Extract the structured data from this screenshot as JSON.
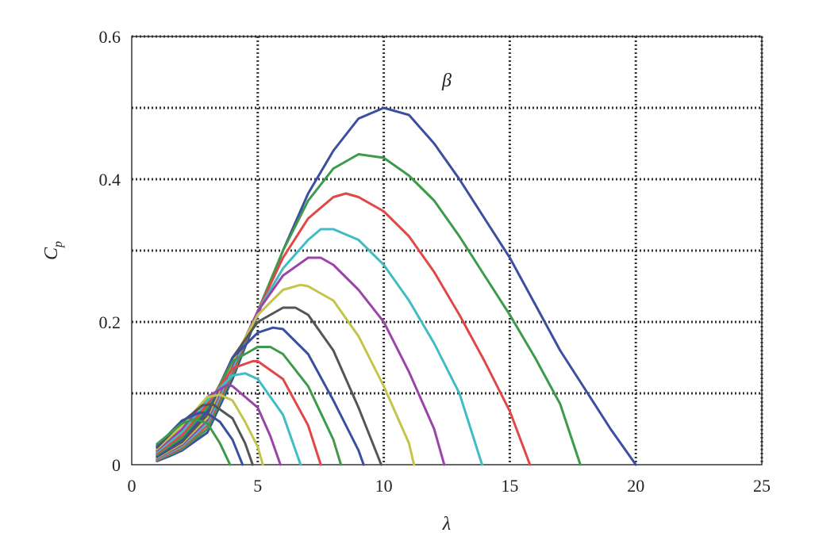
{
  "chart_data": {
    "type": "line",
    "title": "",
    "xlabel": "λ",
    "ylabel": "C",
    "ylabel_sub": "p",
    "xlim": [
      0,
      25
    ],
    "ylim": [
      0,
      0.6
    ],
    "x_ticks": [
      0,
      5,
      10,
      15,
      20,
      25
    ],
    "x_tick_labels": [
      "0",
      "5",
      "10",
      "15",
      "20",
      "25"
    ],
    "y_ticks": [
      0,
      0.2,
      0.4,
      0.6
    ],
    "y_tick_labels": [
      "0",
      "0.2",
      "0.4",
      "0.6"
    ],
    "grid": true,
    "grid_x": [
      5,
      10,
      15,
      20,
      25
    ],
    "grid_y": [
      0.1,
      0.2,
      0.3,
      0.4,
      0.5,
      0.6
    ],
    "annotation": {
      "text": "β",
      "x": 12.5,
      "y": 0.53
    },
    "series": [
      {
        "color": "#3a4fa0",
        "values": [
          [
            1,
            0.005
          ],
          [
            1.5,
            0.012
          ],
          [
            2,
            0.02
          ],
          [
            3,
            0.045
          ],
          [
            4,
            0.12
          ],
          [
            5,
            0.21
          ],
          [
            6,
            0.3
          ],
          [
            7,
            0.38
          ],
          [
            8,
            0.44
          ],
          [
            9,
            0.485
          ],
          [
            10,
            0.5
          ],
          [
            11,
            0.49
          ],
          [
            12,
            0.45
          ],
          [
            13,
            0.4
          ],
          [
            14,
            0.345
          ],
          [
            15,
            0.29
          ],
          [
            16,
            0.225
          ],
          [
            17,
            0.16
          ],
          [
            18,
            0.105
          ],
          [
            19,
            0.05
          ],
          [
            20,
            0
          ]
        ]
      },
      {
        "color": "#3c9a4a",
        "values": [
          [
            1,
            0.006
          ],
          [
            2,
            0.022
          ],
          [
            3,
            0.05
          ],
          [
            4,
            0.125
          ],
          [
            5,
            0.215
          ],
          [
            6,
            0.3
          ],
          [
            7,
            0.37
          ],
          [
            8,
            0.415
          ],
          [
            9,
            0.435
          ],
          [
            10,
            0.43
          ],
          [
            11,
            0.405
          ],
          [
            12,
            0.37
          ],
          [
            13,
            0.32
          ],
          [
            14,
            0.265
          ],
          [
            15,
            0.21
          ],
          [
            16,
            0.15
          ],
          [
            17,
            0.085
          ],
          [
            17.8,
            0
          ]
        ]
      },
      {
        "color": "#e04848",
        "values": [
          [
            1,
            0.007
          ],
          [
            2,
            0.024
          ],
          [
            3,
            0.055
          ],
          [
            4,
            0.13
          ],
          [
            5,
            0.215
          ],
          [
            6,
            0.29
          ],
          [
            7,
            0.345
          ],
          [
            8,
            0.375
          ],
          [
            8.5,
            0.38
          ],
          [
            9,
            0.375
          ],
          [
            10,
            0.355
          ],
          [
            11,
            0.32
          ],
          [
            12,
            0.27
          ],
          [
            13,
            0.21
          ],
          [
            14,
            0.145
          ],
          [
            15,
            0.075
          ],
          [
            15.8,
            0
          ]
        ]
      },
      {
        "color": "#40bcc4",
        "values": [
          [
            1,
            0.008
          ],
          [
            2,
            0.026
          ],
          [
            3,
            0.058
          ],
          [
            4,
            0.135
          ],
          [
            5,
            0.215
          ],
          [
            6,
            0.275
          ],
          [
            7,
            0.315
          ],
          [
            7.5,
            0.33
          ],
          [
            8,
            0.33
          ],
          [
            9,
            0.315
          ],
          [
            10,
            0.28
          ],
          [
            11,
            0.23
          ],
          [
            12,
            0.17
          ],
          [
            13,
            0.1
          ],
          [
            13.9,
            0
          ]
        ]
      },
      {
        "color": "#9a44a8",
        "values": [
          [
            1,
            0.009
          ],
          [
            2,
            0.028
          ],
          [
            3,
            0.062
          ],
          [
            4,
            0.14
          ],
          [
            5,
            0.215
          ],
          [
            6,
            0.265
          ],
          [
            7,
            0.29
          ],
          [
            7.5,
            0.29
          ],
          [
            8,
            0.28
          ],
          [
            9,
            0.245
          ],
          [
            10,
            0.2
          ],
          [
            11,
            0.13
          ],
          [
            12,
            0.05
          ],
          [
            12.4,
            0
          ]
        ]
      },
      {
        "color": "#c4c44a",
        "values": [
          [
            1,
            0.01
          ],
          [
            2,
            0.03
          ],
          [
            3,
            0.066
          ],
          [
            4,
            0.145
          ],
          [
            5,
            0.21
          ],
          [
            6,
            0.245
          ],
          [
            6.7,
            0.252
          ],
          [
            7,
            0.25
          ],
          [
            8,
            0.23
          ],
          [
            9,
            0.18
          ],
          [
            10,
            0.11
          ],
          [
            11,
            0.03
          ],
          [
            11.2,
            0
          ]
        ]
      },
      {
        "color": "#555555",
        "values": [
          [
            1,
            0.011
          ],
          [
            2,
            0.032
          ],
          [
            3,
            0.07
          ],
          [
            4,
            0.15
          ],
          [
            5,
            0.2
          ],
          [
            6,
            0.22
          ],
          [
            6.5,
            0.22
          ],
          [
            7,
            0.21
          ],
          [
            8,
            0.16
          ],
          [
            9,
            0.08
          ],
          [
            9.9,
            0
          ]
        ]
      },
      {
        "color": "#3a4fa0",
        "values": [
          [
            1,
            0.012
          ],
          [
            2,
            0.035
          ],
          [
            3,
            0.075
          ],
          [
            4,
            0.15
          ],
          [
            5,
            0.185
          ],
          [
            5.6,
            0.192
          ],
          [
            6,
            0.19
          ],
          [
            7,
            0.155
          ],
          [
            8,
            0.09
          ],
          [
            9,
            0.02
          ],
          [
            9.2,
            0
          ]
        ]
      },
      {
        "color": "#3c9a4a",
        "values": [
          [
            1,
            0.014
          ],
          [
            2,
            0.038
          ],
          [
            3,
            0.08
          ],
          [
            4,
            0.145
          ],
          [
            5,
            0.165
          ],
          [
            5.5,
            0.165
          ],
          [
            6,
            0.155
          ],
          [
            7,
            0.11
          ],
          [
            8,
            0.035
          ],
          [
            8.3,
            0
          ]
        ]
      },
      {
        "color": "#e04848",
        "values": [
          [
            1,
            0.016
          ],
          [
            2,
            0.042
          ],
          [
            3,
            0.085
          ],
          [
            4,
            0.135
          ],
          [
            4.8,
            0.145
          ],
          [
            5,
            0.145
          ],
          [
            6,
            0.12
          ],
          [
            7,
            0.055
          ],
          [
            7.5,
            0
          ]
        ]
      },
      {
        "color": "#40bcc4",
        "values": [
          [
            1,
            0.018
          ],
          [
            2,
            0.046
          ],
          [
            3,
            0.09
          ],
          [
            4,
            0.125
          ],
          [
            4.5,
            0.128
          ],
          [
            5,
            0.12
          ],
          [
            6,
            0.07
          ],
          [
            6.7,
            0
          ]
        ]
      },
      {
        "color": "#9a44a8",
        "values": [
          [
            1,
            0.02
          ],
          [
            2,
            0.05
          ],
          [
            3,
            0.095
          ],
          [
            3.8,
            0.112
          ],
          [
            4,
            0.11
          ],
          [
            5,
            0.08
          ],
          [
            5.5,
            0.04
          ],
          [
            5.9,
            0
          ]
        ]
      },
      {
        "color": "#c4c44a",
        "values": [
          [
            1,
            0.022
          ],
          [
            2,
            0.055
          ],
          [
            3,
            0.095
          ],
          [
            3.5,
            0.098
          ],
          [
            4,
            0.09
          ],
          [
            4.5,
            0.06
          ],
          [
            5,
            0.025
          ],
          [
            5.2,
            0
          ]
        ]
      },
      {
        "color": "#555555",
        "values": [
          [
            1,
            0.024
          ],
          [
            2,
            0.06
          ],
          [
            2.8,
            0.083
          ],
          [
            3.2,
            0.085
          ],
          [
            4,
            0.065
          ],
          [
            4.5,
            0.03
          ],
          [
            4.8,
            0
          ]
        ]
      },
      {
        "color": "#3a4fa0",
        "values": [
          [
            1,
            0.026
          ],
          [
            2,
            0.062
          ],
          [
            2.7,
            0.073
          ],
          [
            3,
            0.072
          ],
          [
            3.5,
            0.06
          ],
          [
            4,
            0.035
          ],
          [
            4.4,
            0
          ]
        ]
      },
      {
        "color": "#3c9a4a",
        "values": [
          [
            1,
            0.029
          ],
          [
            2,
            0.058
          ],
          [
            2.5,
            0.064
          ],
          [
            3,
            0.058
          ],
          [
            3.5,
            0.03
          ],
          [
            3.9,
            0
          ]
        ]
      }
    ]
  }
}
